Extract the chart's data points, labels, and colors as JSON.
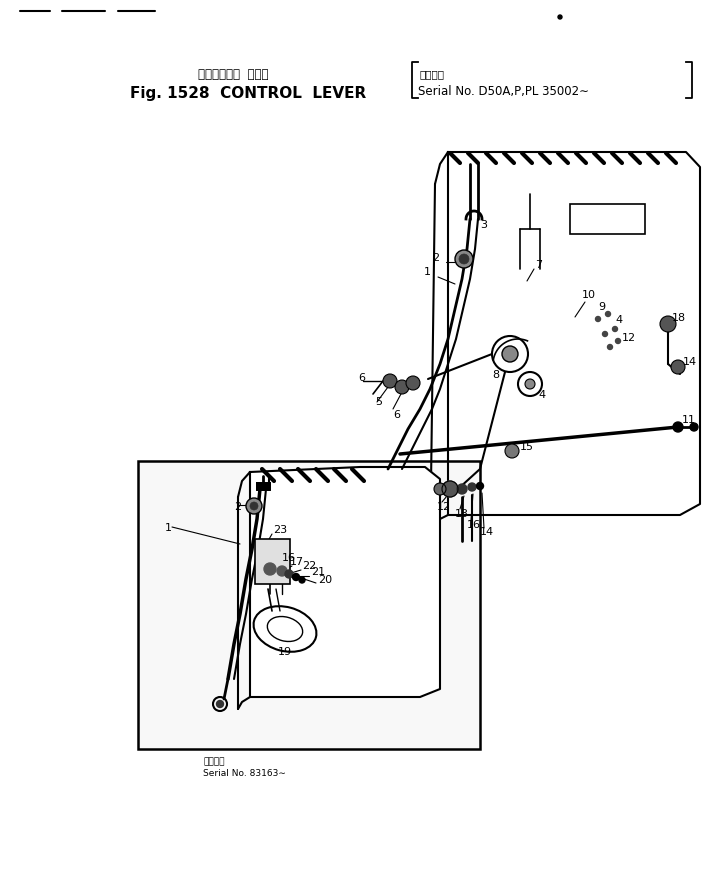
{
  "title_jp": "コントロール  レバー",
  "title_en": "Fig. 1528  CONTROL  LEVER",
  "serial_jp": "適用号機",
  "serial_en": "Serial No. D50A,P,PL 35002∼",
  "inset_serial_jp": "適用番号",
  "inset_serial_en": "Serial No. 83163∼",
  "bg_color": "#ffffff",
  "line_color": "#000000",
  "fig_width": 7.13,
  "fig_height": 8.78,
  "dpi": 100
}
